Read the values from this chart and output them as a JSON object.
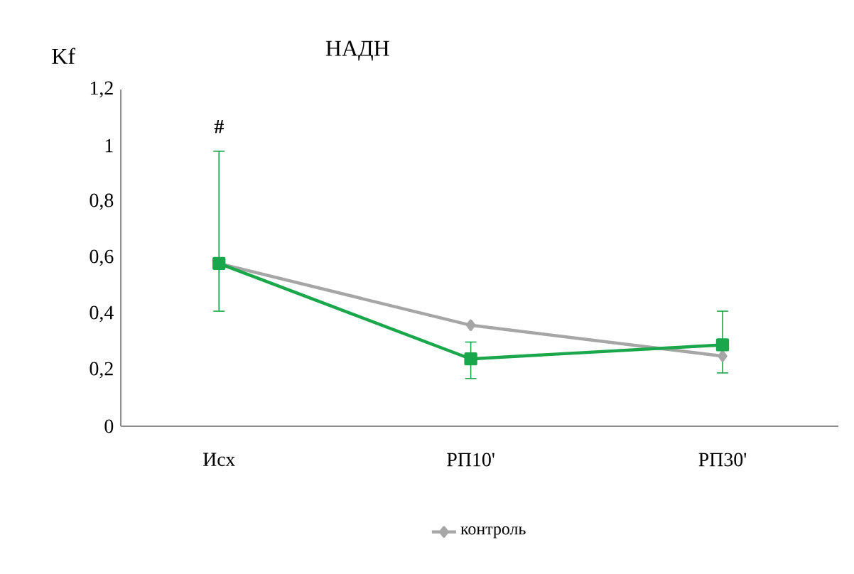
{
  "chart_data": {
    "type": "line",
    "title": "НАДН",
    "ylabel": "Kf",
    "categories": [
      "Исх",
      "РП10'",
      "РП30'"
    ],
    "series": [
      {
        "name": "контроль",
        "color": "#a6a6a6",
        "values": [
          0.58,
          0.36,
          0.25
        ],
        "marker": "diamond"
      },
      {
        "color": "#1aa64a",
        "values": [
          0.58,
          0.24,
          0.29
        ],
        "marker": "square",
        "errors": [
          [
            0.41,
            0.98
          ],
          [
            0.17,
            0.3
          ],
          [
            0.19,
            0.41
          ]
        ]
      }
    ],
    "ylim": [
      0,
      1.2
    ],
    "yticks": [
      0,
      {
        "value": 0.2,
        "label": "0,2"
      },
      {
        "value": 0.4,
        "label": "0,4"
      },
      {
        "value": 0.6,
        "label": "0,6"
      },
      {
        "value": 0.8,
        "label": "0,8"
      },
      1,
      {
        "value": 1.2,
        "label": "1,2"
      }
    ],
    "annotations": [
      "#"
    ],
    "grid": false,
    "legend": "bottom"
  }
}
